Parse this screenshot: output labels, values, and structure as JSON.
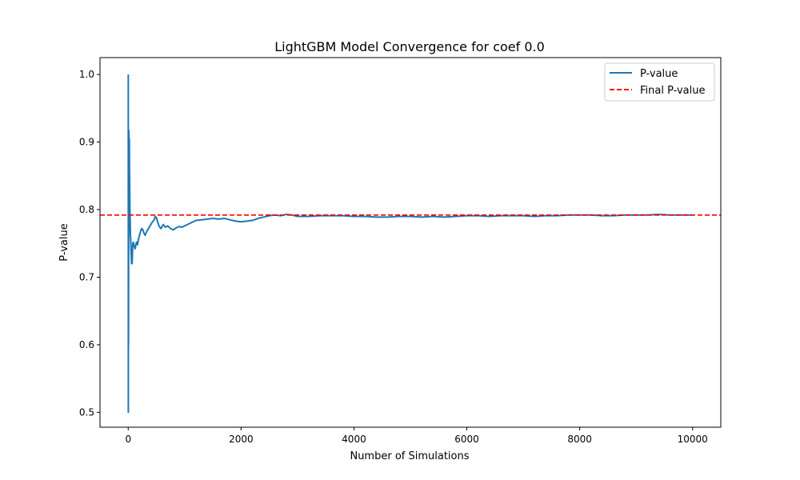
{
  "chart_data": {
    "type": "line",
    "title": "LightGBM Model Convergence for coef 0.0",
    "xlabel": "Number of Simulations",
    "ylabel": "P-value",
    "xlim": [
      -500,
      10500
    ],
    "ylim": [
      0.478,
      1.025
    ],
    "x_ticks": [
      0,
      2000,
      4000,
      6000,
      8000,
      10000
    ],
    "x_tick_labels": [
      "0",
      "2000",
      "4000",
      "6000",
      "8000",
      "10000"
    ],
    "y_ticks": [
      0.5,
      0.6,
      0.7,
      0.8,
      0.9,
      1.0
    ],
    "y_tick_labels": [
      "0.5",
      "0.6",
      "0.7",
      "0.8",
      "0.9",
      "1.0"
    ],
    "grid": false,
    "legend_position": "upper right",
    "series": [
      {
        "name": "P-value",
        "color": "#1f77b4",
        "style": "solid",
        "x": [
          1,
          2,
          3,
          4,
          5,
          6,
          8,
          10,
          12,
          14,
          16,
          18,
          20,
          22,
          25,
          28,
          30,
          33,
          36,
          40,
          45,
          50,
          55,
          60,
          65,
          70,
          75,
          80,
          85,
          90,
          100,
          110,
          120,
          130,
          140,
          150,
          165,
          180,
          200,
          220,
          240,
          260,
          280,
          300,
          330,
          360,
          400,
          430,
          460,
          480,
          500,
          520,
          550,
          580,
          620,
          660,
          700,
          750,
          800,
          850,
          900,
          950,
          1000,
          1050,
          1100,
          1150,
          1200,
          1300,
          1400,
          1500,
          1600,
          1700,
          1800,
          1900,
          2000,
          2100,
          2200,
          2300,
          2400,
          2500,
          2600,
          2700,
          2800,
          2900,
          3000,
          3200,
          3400,
          3600,
          3800,
          4000,
          4200,
          4400,
          4600,
          4800,
          5000,
          5200,
          5400,
          5600,
          5800,
          6000,
          6200,
          6400,
          6600,
          6800,
          7000,
          7200,
          7400,
          7600,
          7800,
          8000,
          8200,
          8400,
          8600,
          8800,
          9000,
          9200,
          9400,
          9600,
          9800,
          10000
        ],
        "y": [
          1.0,
          0.5,
          0.667,
          0.75,
          0.6,
          0.667,
          0.75,
          0.8,
          0.917,
          0.857,
          0.875,
          0.9,
          0.905,
          0.864,
          0.84,
          0.82,
          0.8,
          0.79,
          0.778,
          0.76,
          0.755,
          0.74,
          0.73,
          0.72,
          0.72,
          0.722,
          0.735,
          0.75,
          0.745,
          0.752,
          0.748,
          0.745,
          0.742,
          0.745,
          0.75,
          0.752,
          0.748,
          0.755,
          0.762,
          0.768,
          0.772,
          0.77,
          0.765,
          0.762,
          0.768,
          0.772,
          0.778,
          0.782,
          0.785,
          0.79,
          0.788,
          0.782,
          0.775,
          0.772,
          0.778,
          0.774,
          0.776,
          0.772,
          0.77,
          0.773,
          0.775,
          0.774,
          0.776,
          0.778,
          0.78,
          0.782,
          0.784,
          0.785,
          0.786,
          0.787,
          0.786,
          0.787,
          0.785,
          0.783,
          0.782,
          0.783,
          0.784,
          0.787,
          0.789,
          0.791,
          0.792,
          0.791,
          0.793,
          0.792,
          0.79,
          0.79,
          0.791,
          0.791,
          0.791,
          0.79,
          0.79,
          0.789,
          0.789,
          0.79,
          0.79,
          0.789,
          0.79,
          0.789,
          0.79,
          0.791,
          0.791,
          0.79,
          0.791,
          0.791,
          0.791,
          0.79,
          0.791,
          0.791,
          0.792,
          0.792,
          0.792,
          0.791,
          0.791,
          0.792,
          0.792,
          0.792,
          0.793,
          0.792,
          0.792,
          0.792
        ]
      },
      {
        "name": "Final P-value",
        "color": "#ff0000",
        "style": "dashed",
        "type": "hline",
        "value": 0.792
      }
    ]
  }
}
